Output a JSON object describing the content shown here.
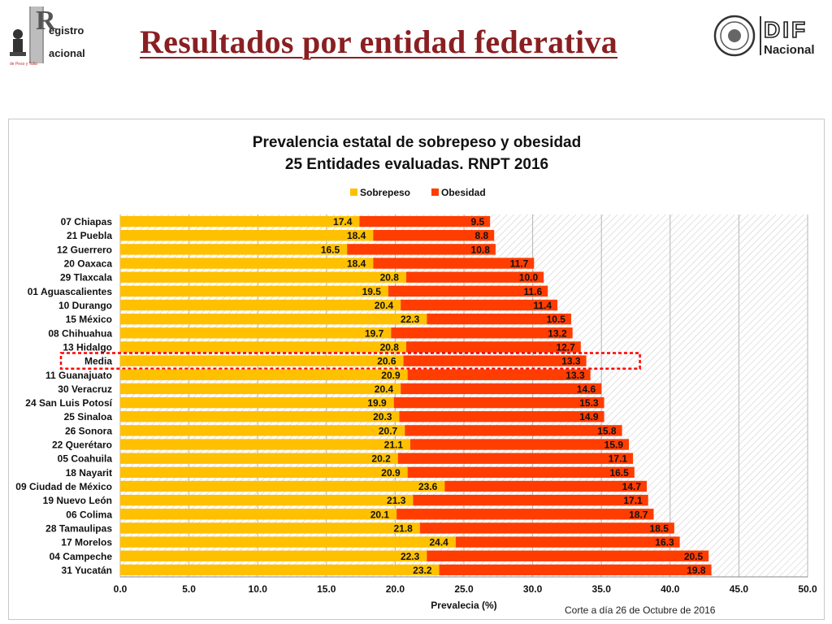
{
  "header": {
    "title": "Resultados por entidad federativa",
    "logo_left": {
      "icon": "registro-nacional-logo-icon",
      "line1": "egistro",
      "line2": "acional",
      "initial": "R",
      "sub": "de Peso y Talla"
    },
    "logo_right": {
      "icon": "dif-nacional-logo-icon",
      "line1": "DIF",
      "line2": "Nacional"
    }
  },
  "colors": {
    "sobrepeso": "#FFC000",
    "obesidad": "#FF3D00",
    "title_red": "#8a1f22",
    "highlight": "#FF0000"
  },
  "chart_data": {
    "type": "bar",
    "orientation": "horizontal",
    "stacked": true,
    "title_line1": "Prevalencia estatal de sobrepeso y obesidad",
    "title_line2": "25 Entidades evaluadas. RNPT 2016",
    "xlabel": "Prevalecia (%)",
    "ylabel": "",
    "xlim": [
      0,
      50
    ],
    "xticks": [
      "0.0",
      "5.0",
      "10.0",
      "15.0",
      "20.0",
      "25.0",
      "30.0",
      "35.0",
      "40.0",
      "45.0",
      "50.0"
    ],
    "legend_position": "top",
    "highlighted_category": "Media",
    "categories": [
      "07 Chiapas",
      "21 Puebla",
      "12 Guerrero",
      "20 Oaxaca",
      "29 Tlaxcala",
      "01 Aguascalientes",
      "10 Durango",
      "15 México",
      "08 Chihuahua",
      "13 Hidalgo",
      "Media",
      "11 Guanajuato",
      "30 Veracruz",
      "24 San Luis Potosí",
      "25 Sinaloa",
      "26 Sonora",
      "22 Querétaro",
      "05 Coahuila",
      "18 Nayarit",
      "09 Ciudad de México",
      "19 Nuevo León",
      "06 Colima",
      "28 Tamaulipas",
      "17 Morelos",
      "04 Campeche",
      "31 Yucatán"
    ],
    "series": [
      {
        "name": "Sobrepeso",
        "color": "#FFC000",
        "values": [
          17.4,
          18.4,
          16.5,
          18.4,
          20.8,
          19.5,
          20.4,
          22.3,
          19.7,
          20.8,
          20.6,
          20.9,
          20.4,
          19.9,
          20.3,
          20.7,
          21.1,
          20.2,
          20.9,
          23.6,
          21.3,
          20.1,
          21.8,
          24.4,
          22.3,
          23.2
        ]
      },
      {
        "name": "Obesidad",
        "color": "#FF3D00",
        "values": [
          9.5,
          8.8,
          10.8,
          11.7,
          10.0,
          11.6,
          11.4,
          10.5,
          13.2,
          12.7,
          13.3,
          13.3,
          14.6,
          15.3,
          14.9,
          15.8,
          15.9,
          17.1,
          16.5,
          14.7,
          17.1,
          18.7,
          18.5,
          16.3,
          20.5,
          19.8
        ]
      }
    ]
  },
  "footnote": "Corte a día 26 de Octubre de 2016"
}
